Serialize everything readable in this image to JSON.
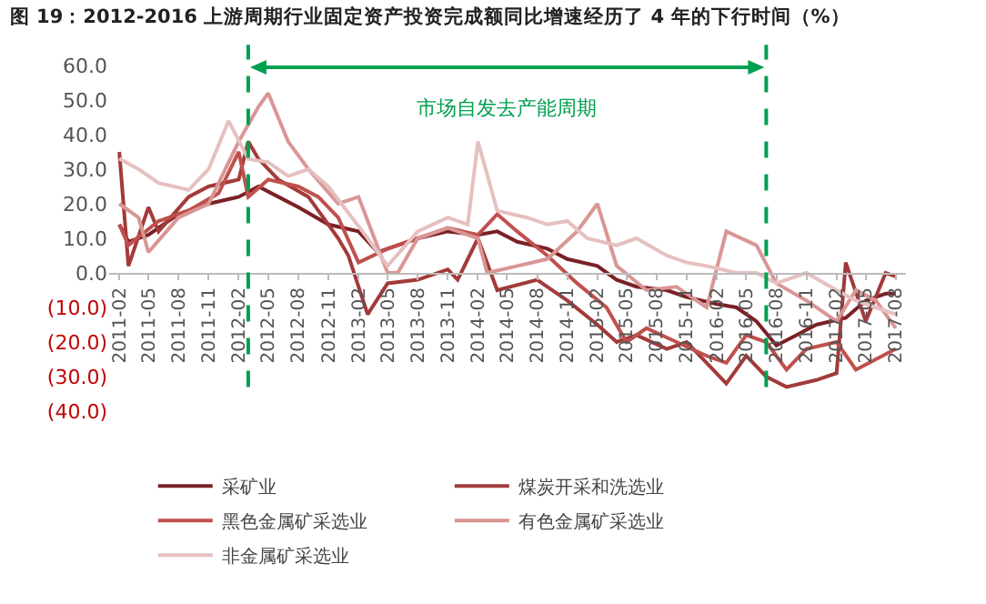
{
  "chart_data": {
    "type": "line",
    "title": "图 19：2012-2016 上游周期行业固定资产投资完成额同比增速经历了 4 年的下行时间（%）",
    "xlim": [
      "2011-01",
      "2017-09"
    ],
    "xticks": [
      "2011-02",
      "2011-05",
      "2011-08",
      "2011-11",
      "2012-02",
      "2012-05",
      "2012-08",
      "2012-11",
      "2013-02",
      "2013-05",
      "2013-08",
      "2013-11",
      "2014-02",
      "2014-05",
      "2014-08",
      "2014-11",
      "2015-02",
      "2015-05",
      "2015-08",
      "2015-11",
      "2016-02",
      "2016-05",
      "2016-08",
      "2016-11",
      "2017-02",
      "2017-05",
      "2017-08"
    ],
    "ylim": [
      -40,
      60
    ],
    "yticks": [
      {
        "value": 60,
        "label": "60.0"
      },
      {
        "value": 50,
        "label": "50.0"
      },
      {
        "value": 40,
        "label": "40.0"
      },
      {
        "value": 30,
        "label": "30.0"
      },
      {
        "value": 20,
        "label": "20.0"
      },
      {
        "value": 10,
        "label": "10.0"
      },
      {
        "value": 0,
        "label": "0.0"
      },
      {
        "value": -10,
        "label": "(10.0)"
      },
      {
        "value": -20,
        "label": "(20.0)"
      },
      {
        "value": -30,
        "label": "(30.0)"
      },
      {
        "value": -40,
        "label": "(40.0)"
      }
    ],
    "grid": false,
    "legend": "bottom",
    "marker": "none",
    "line_style": "solid",
    "ref_lines": [
      {
        "axis": "x",
        "value": "2012-03",
        "color": "#00a050",
        "line_style": "dashed"
      },
      {
        "axis": "x",
        "value": "2016-07",
        "color": "#00a050",
        "line_style": "dashed"
      }
    ],
    "annotations": [
      "市场自发去产能周期"
    ],
    "series": [
      {
        "name": "采矿业",
        "color": "#7b2027",
        "x": [
          "2011-02",
          "2011-03",
          "2011-05",
          "2011-08",
          "2011-11",
          "2012-02",
          "2012-04",
          "2012-06",
          "2012-08",
          "2012-11",
          "2013-02",
          "2013-04",
          "2013-06",
          "2013-08",
          "2013-11",
          "2014-02",
          "2014-04",
          "2014-06",
          "2014-09",
          "2014-11",
          "2015-02",
          "2015-04",
          "2015-06",
          "2015-09",
          "2015-11",
          "2016-02",
          "2016-04",
          "2016-06",
          "2016-08",
          "2016-10",
          "2016-12",
          "2017-03",
          "2017-05",
          "2017-07",
          "2017-08"
        ],
        "values": [
          14,
          9,
          11,
          17,
          20,
          22,
          25,
          22,
          19,
          14,
          12,
          6,
          8,
          10,
          12,
          11,
          12,
          9,
          7,
          4,
          2,
          -2,
          -4,
          -5,
          -7,
          -9,
          -10,
          -14,
          -21,
          -18,
          -15,
          -13,
          -8,
          -6,
          -6
        ]
      },
      {
        "name": "煤炭开采和洗选业",
        "color": "#a33a3a",
        "x": [
          "2011-02",
          "2011-03",
          "2011-05",
          "2011-06",
          "2011-09",
          "2011-11",
          "2012-02",
          "2012-03",
          "2012-04",
          "2012-06",
          "2012-09",
          "2012-12",
          "2013-01",
          "2013-03",
          "2013-05",
          "2013-08",
          "2013-11",
          "2013-12",
          "2014-02",
          "2014-04",
          "2014-08",
          "2014-11",
          "2015-02",
          "2015-04",
          "2015-06",
          "2015-09",
          "2015-11",
          "2016-03",
          "2016-05",
          "2016-07",
          "2016-09",
          "2016-12",
          "2017-02",
          "2017-03",
          "2017-05",
          "2017-07",
          "2017-08"
        ],
        "values": [
          35,
          2,
          19,
          12,
          22,
          25,
          27,
          38,
          33,
          27,
          22,
          10,
          5,
          -12,
          -3,
          -2,
          1,
          -2,
          10,
          -5,
          -2,
          -8,
          -15,
          -20,
          -18,
          -22,
          -20,
          -32,
          -24,
          -30,
          -33,
          -31,
          -29,
          3,
          -14,
          0,
          -1
        ]
      },
      {
        "name": "黑色金属矿采选业",
        "color": "#c0504d",
        "x": [
          "2011-02",
          "2011-03",
          "2011-06",
          "2011-09",
          "2011-12",
          "2012-02",
          "2012-03",
          "2012-05",
          "2012-08",
          "2012-10",
          "2012-12",
          "2013-02",
          "2013-05",
          "2013-08",
          "2013-11",
          "2014-02",
          "2014-04",
          "2014-06",
          "2014-09",
          "2014-12",
          "2015-03",
          "2015-05",
          "2015-07",
          "2015-10",
          "2016-01",
          "2016-03",
          "2016-05",
          "2016-07",
          "2016-09",
          "2016-11",
          "2017-02",
          "2017-04",
          "2017-06",
          "2017-08"
        ],
        "values": [
          14,
          8,
          15,
          18,
          23,
          35,
          22,
          27,
          25,
          22,
          16,
          3,
          7,
          10,
          13,
          11,
          17,
          12,
          5,
          -3,
          -10,
          -20,
          -16,
          -20,
          -24,
          -26,
          -18,
          -20,
          -28,
          -22,
          -20,
          -28,
          -25,
          -22
        ]
      },
      {
        "name": "有色金属矿采选业",
        "color": "#d99694",
        "x": [
          "2011-02",
          "2011-04",
          "2011-05",
          "2011-08",
          "2011-11",
          "2012-02",
          "2012-04",
          "2012-05",
          "2012-07",
          "2012-09",
          "2012-12",
          "2013-02",
          "2013-05",
          "2013-06",
          "2013-08",
          "2013-11",
          "2014-02",
          "2014-03",
          "2014-06",
          "2014-09",
          "2014-12",
          "2015-02",
          "2015-04",
          "2015-07",
          "2015-10",
          "2016-01",
          "2016-03",
          "2016-06",
          "2016-08",
          "2016-11",
          "2017-02",
          "2017-04",
          "2017-06",
          "2017-08"
        ],
        "values": [
          20,
          16,
          6,
          16,
          20,
          38,
          48,
          52,
          38,
          30,
          20,
          22,
          0,
          0,
          10,
          13,
          10,
          0,
          2,
          4,
          12,
          20,
          2,
          -5,
          -4,
          -10,
          12,
          8,
          -3,
          -8,
          -14,
          -5,
          -8,
          -16
        ]
      },
      {
        "name": "非金属矿采选业",
        "color": "#e6c0c0",
        "x": [
          "2011-02",
          "2011-04",
          "2011-06",
          "2011-09",
          "2011-11",
          "2012-01",
          "2012-03",
          "2012-05",
          "2012-07",
          "2012-09",
          "2012-11",
          "2013-03",
          "2013-05",
          "2013-08",
          "2013-11",
          "2014-01",
          "2014-02",
          "2014-04",
          "2014-07",
          "2014-09",
          "2014-11",
          "2015-01",
          "2015-04",
          "2015-06",
          "2015-09",
          "2015-11",
          "2016-01",
          "2016-04",
          "2016-06",
          "2016-08",
          "2016-11",
          "2017-02",
          "2017-04",
          "2017-06",
          "2017-08"
        ],
        "values": [
          33,
          30,
          26,
          24,
          30,
          44,
          33,
          32,
          28,
          30,
          25,
          10,
          2,
          12,
          16,
          14,
          38,
          18,
          16,
          14,
          15,
          10,
          8,
          10,
          5,
          3,
          2,
          0,
          0,
          -3,
          0,
          -5,
          -8,
          -10,
          -12
        ]
      }
    ]
  }
}
